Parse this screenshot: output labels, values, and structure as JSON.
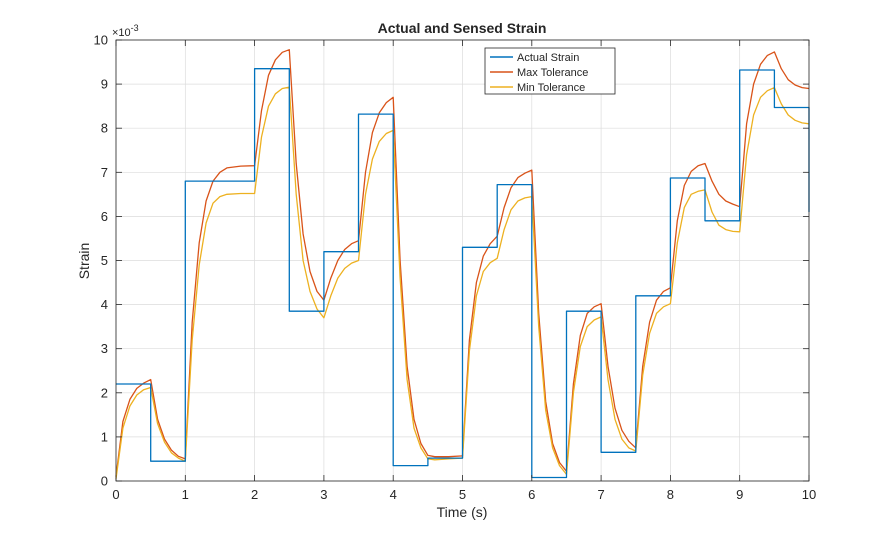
{
  "chart_data": {
    "type": "line",
    "title": "Actual and Sensed Strain",
    "xlabel": "Time (s)",
    "ylabel": "Strain",
    "xlim": [
      0,
      10
    ],
    "ylim": [
      0,
      10
    ],
    "y_multiplier": "×10",
    "y_exponent": "-3",
    "xticks": [
      "0",
      "1",
      "2",
      "3",
      "4",
      "5",
      "6",
      "7",
      "8",
      "9",
      "10"
    ],
    "yticks": [
      "0",
      "1",
      "2",
      "3",
      "4",
      "5",
      "6",
      "7",
      "8",
      "9",
      "10"
    ],
    "grid": true,
    "legend_position": "top-right",
    "series": [
      {
        "name": "Actual Strain",
        "color": "#0072BD",
        "style": "step",
        "x": [
          0,
          0.5,
          1,
          2,
          2.5,
          3,
          3.5,
          4,
          4.5,
          5,
          5.5,
          6,
          6.5,
          7,
          7.5,
          8,
          8.5,
          9,
          9.5,
          10
        ],
        "values": [
          2.2,
          0.45,
          6.8,
          9.35,
          3.85,
          5.2,
          8.32,
          0.35,
          0.52,
          5.3,
          6.72,
          0.08,
          3.85,
          0.65,
          4.2,
          6.87,
          5.9,
          9.32,
          8.47,
          6.1
        ]
      },
      {
        "name": "Max Tolerance",
        "color": "#D95319",
        "style": "line",
        "x": [
          0,
          0.1,
          0.2,
          0.3,
          0.4,
          0.5,
          0.6,
          0.7,
          0.8,
          0.9,
          1,
          1.1,
          1.2,
          1.3,
          1.4,
          1.5,
          1.6,
          1.8,
          2,
          2.1,
          2.2,
          2.3,
          2.4,
          2.5,
          2.6,
          2.7,
          2.8,
          2.9,
          3,
          3.1,
          3.2,
          3.3,
          3.4,
          3.5,
          3.6,
          3.7,
          3.8,
          3.9,
          4,
          4.1,
          4.2,
          4.3,
          4.4,
          4.5,
          4.6,
          4.8,
          5,
          5.1,
          5.2,
          5.3,
          5.4,
          5.5,
          5.6,
          5.7,
          5.8,
          5.9,
          6,
          6.1,
          6.2,
          6.3,
          6.4,
          6.5,
          6.6,
          6.7,
          6.8,
          6.9,
          7,
          7.1,
          7.2,
          7.3,
          7.4,
          7.5,
          7.6,
          7.7,
          7.8,
          7.9,
          8,
          8.1,
          8.2,
          8.3,
          8.4,
          8.5,
          8.6,
          8.7,
          8.8,
          8.9,
          9,
          9.1,
          9.2,
          9.3,
          9.4,
          9.5,
          9.6,
          9.7,
          9.8,
          9.9,
          10
        ],
        "values": [
          0.1,
          1.35,
          1.85,
          2.1,
          2.22,
          2.3,
          1.4,
          0.95,
          0.7,
          0.56,
          0.5,
          3.6,
          5.4,
          6.35,
          6.8,
          7.0,
          7.1,
          7.14,
          7.15,
          8.4,
          9.2,
          9.55,
          9.72,
          9.78,
          7.2,
          5.6,
          4.75,
          4.3,
          4.1,
          4.6,
          5.0,
          5.25,
          5.38,
          5.45,
          7.0,
          7.9,
          8.35,
          8.58,
          8.7,
          5.0,
          2.6,
          1.4,
          0.85,
          0.58,
          0.55,
          0.55,
          0.57,
          3.2,
          4.5,
          5.1,
          5.38,
          5.55,
          6.2,
          6.65,
          6.88,
          6.98,
          7.05,
          3.8,
          1.8,
          0.85,
          0.42,
          0.22,
          2.2,
          3.3,
          3.8,
          3.95,
          4.02,
          2.6,
          1.65,
          1.15,
          0.9,
          0.75,
          2.6,
          3.6,
          4.1,
          4.3,
          4.38,
          5.9,
          6.7,
          7.02,
          7.15,
          7.2,
          6.8,
          6.5,
          6.35,
          6.28,
          6.22,
          8.1,
          9.0,
          9.45,
          9.65,
          9.73,
          9.35,
          9.1,
          8.98,
          8.92,
          8.9
        ]
      },
      {
        "name": "Min Tolerance",
        "color": "#EDB120",
        "style": "line",
        "x": [
          0,
          0.1,
          0.2,
          0.3,
          0.4,
          0.5,
          0.6,
          0.7,
          0.8,
          0.9,
          1,
          1.1,
          1.2,
          1.3,
          1.4,
          1.5,
          1.6,
          1.8,
          2,
          2.1,
          2.2,
          2.3,
          2.4,
          2.5,
          2.6,
          2.7,
          2.8,
          2.9,
          3,
          3.1,
          3.2,
          3.3,
          3.4,
          3.5,
          3.6,
          3.7,
          3.8,
          3.9,
          4,
          4.1,
          4.2,
          4.3,
          4.4,
          4.5,
          4.6,
          4.8,
          5,
          5.1,
          5.2,
          5.3,
          5.4,
          5.5,
          5.6,
          5.7,
          5.8,
          5.9,
          6,
          6.1,
          6.2,
          6.3,
          6.4,
          6.5,
          6.6,
          6.7,
          6.8,
          6.9,
          7,
          7.1,
          7.2,
          7.3,
          7.4,
          7.5,
          7.6,
          7.7,
          7.8,
          7.9,
          8,
          8.1,
          8.2,
          8.3,
          8.4,
          8.5,
          8.6,
          8.7,
          8.8,
          8.9,
          9,
          9.1,
          9.2,
          9.3,
          9.4,
          9.5,
          9.6,
          9.7,
          9.8,
          9.9,
          10
        ],
        "values": [
          0.05,
          1.2,
          1.7,
          1.95,
          2.07,
          2.12,
          1.3,
          0.88,
          0.64,
          0.52,
          0.45,
          3.2,
          4.9,
          5.85,
          6.3,
          6.45,
          6.5,
          6.52,
          6.52,
          7.8,
          8.5,
          8.78,
          8.9,
          8.93,
          6.5,
          5.0,
          4.3,
          3.9,
          3.7,
          4.2,
          4.6,
          4.82,
          4.94,
          5.0,
          6.5,
          7.3,
          7.7,
          7.88,
          7.95,
          4.6,
          2.3,
          1.2,
          0.75,
          0.5,
          0.48,
          0.5,
          0.52,
          2.95,
          4.2,
          4.75,
          4.95,
          5.05,
          5.7,
          6.15,
          6.35,
          6.42,
          6.45,
          3.5,
          1.6,
          0.75,
          0.35,
          0.15,
          2.0,
          3.05,
          3.5,
          3.65,
          3.72,
          2.3,
          1.4,
          0.95,
          0.75,
          0.68,
          2.4,
          3.35,
          3.8,
          3.95,
          4.02,
          5.4,
          6.2,
          6.5,
          6.57,
          6.6,
          6.1,
          5.8,
          5.7,
          5.66,
          5.65,
          7.4,
          8.3,
          8.7,
          8.85,
          8.92,
          8.55,
          8.3,
          8.18,
          8.12,
          8.1
        ]
      }
    ]
  }
}
